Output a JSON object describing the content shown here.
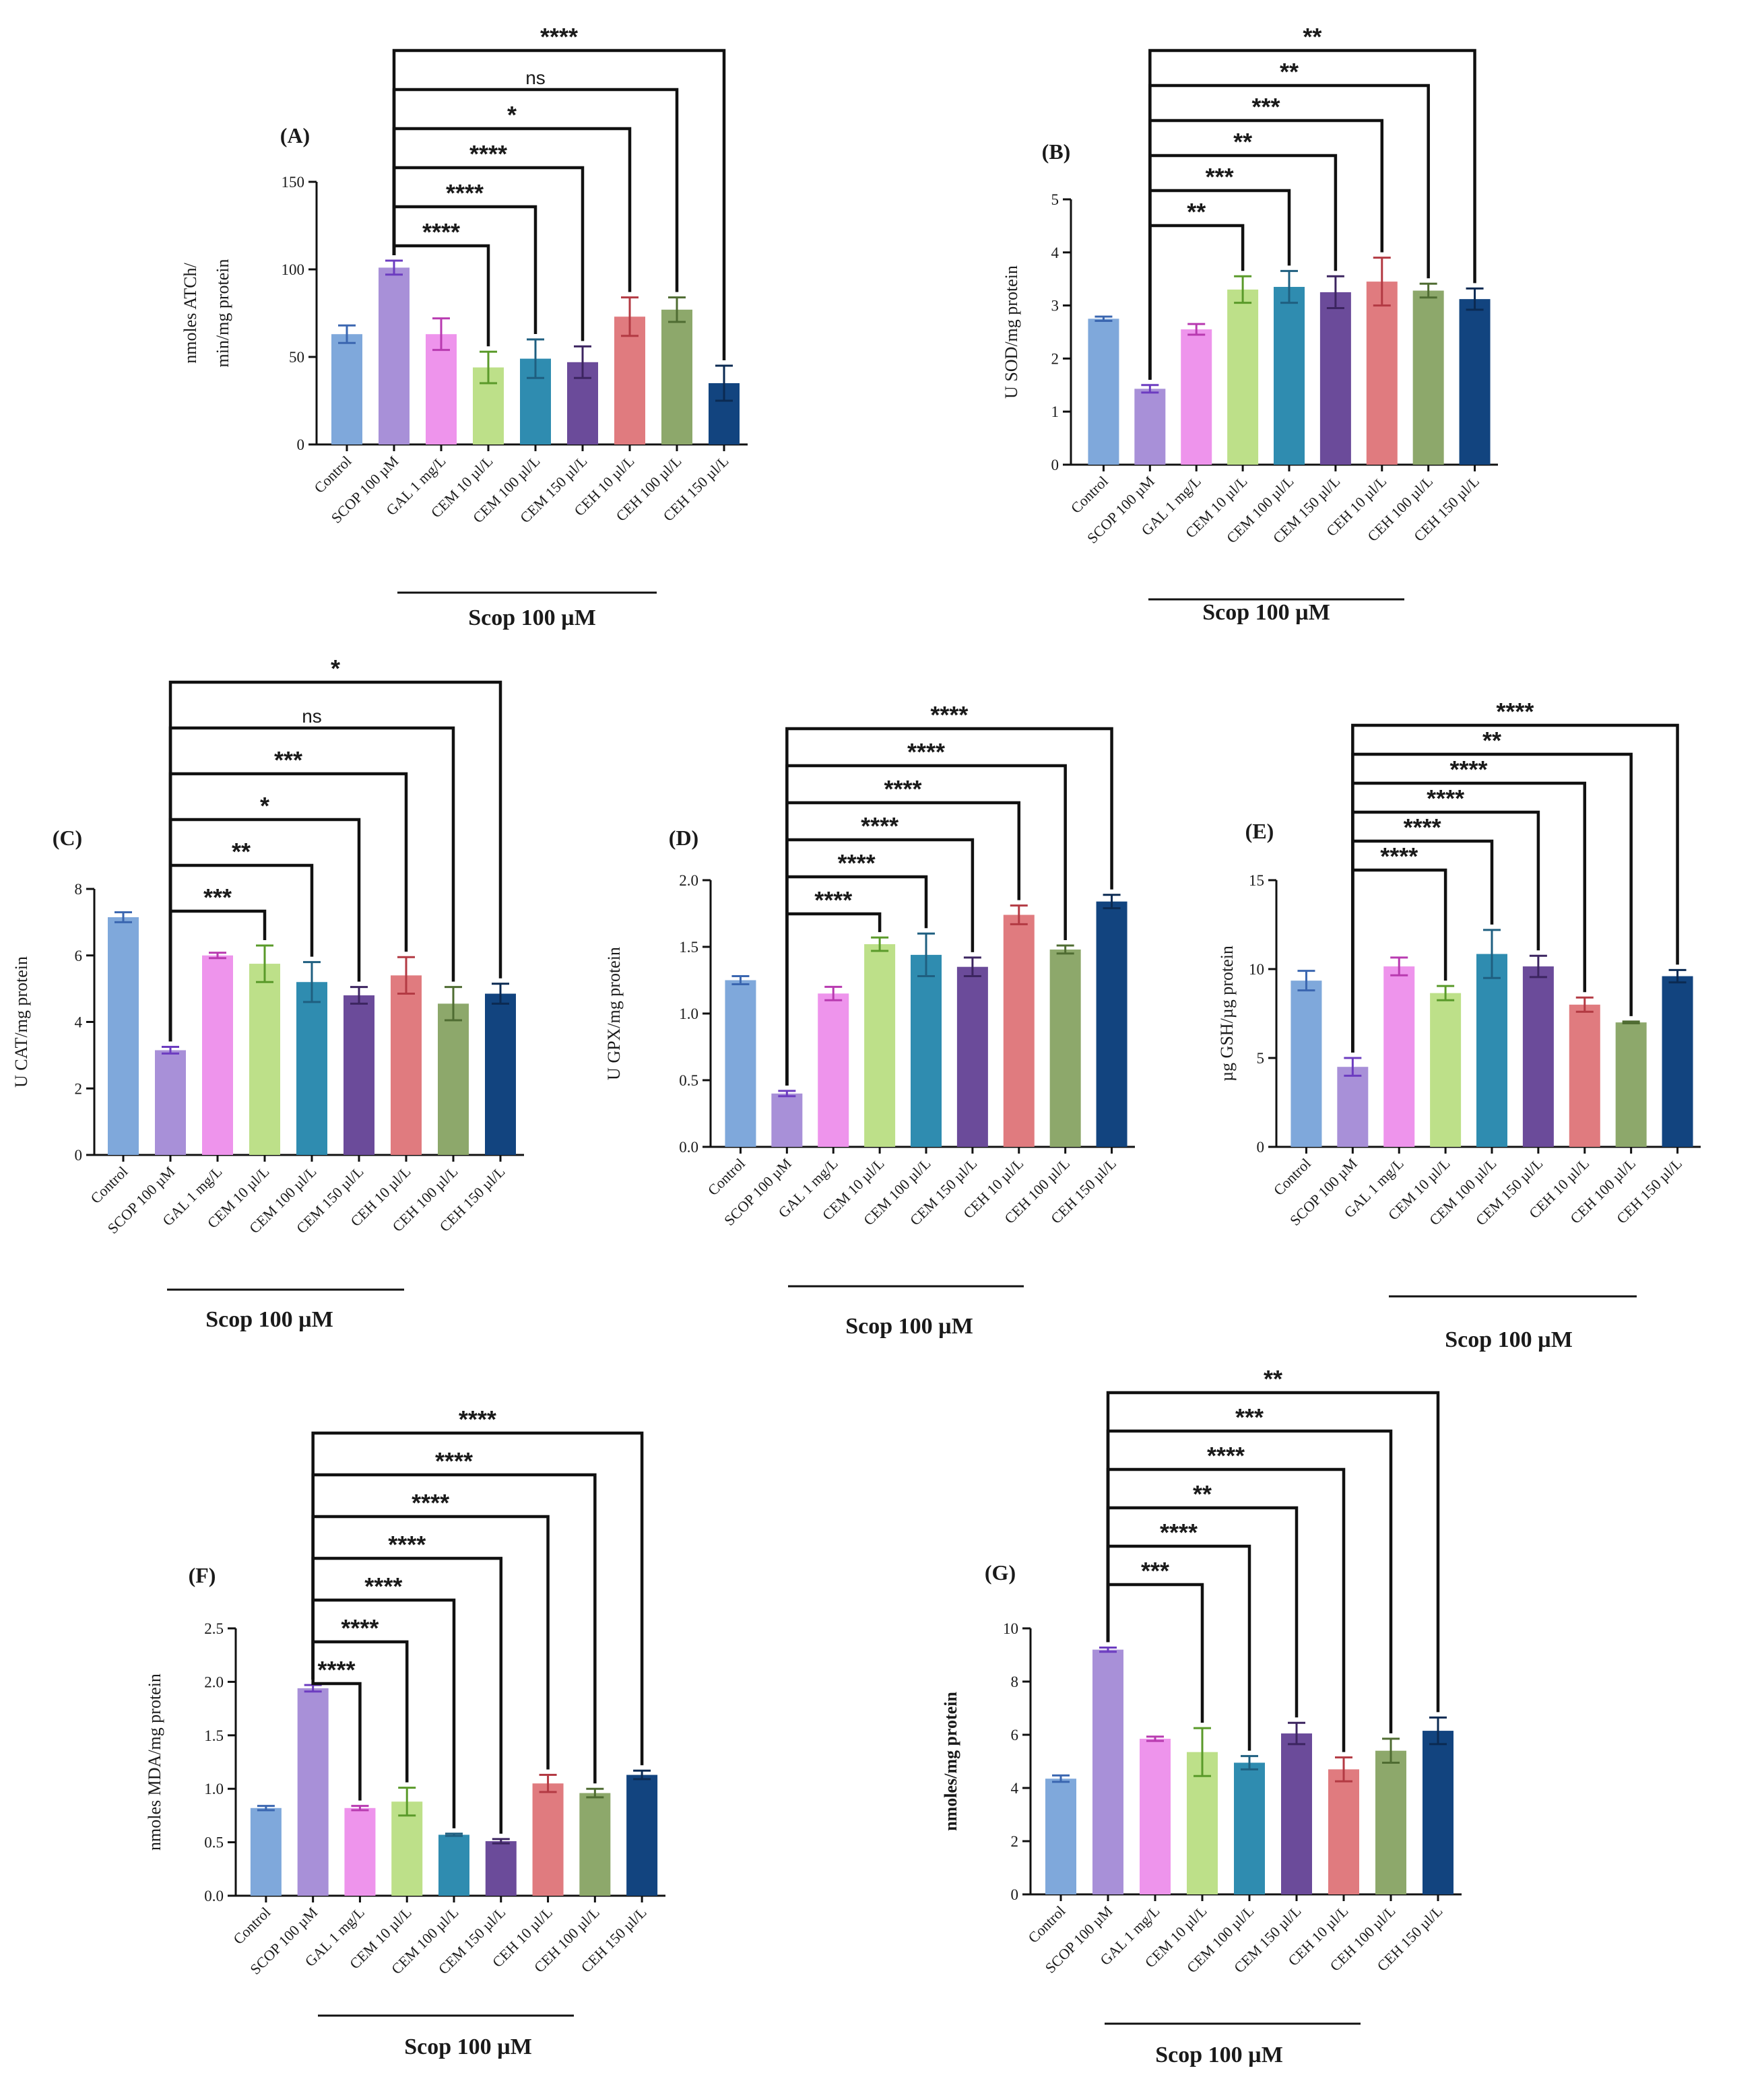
{
  "colors": {
    "fill": [
      "#7fa8db",
      "#a890d8",
      "#ee94ec",
      "#bde089",
      "#2f8cb0",
      "#6b4b9a",
      "#e07b7f",
      "#8da86b",
      "#12447f"
    ],
    "err": [
      "#3a66b0",
      "#6c3cc0",
      "#b83ab0",
      "#5a9a2a",
      "#1f5f80",
      "#3c2560",
      "#b33a43",
      "#4f6c32",
      "#0b2a52"
    ]
  },
  "chart_data": [
    {
      "panel": "(A)",
      "type": "bar",
      "categories": [
        "Control",
        "SCOP 100 µM",
        "GAL 1 mg/L",
        "CEM 10 µl/L",
        "CEM 100 µl/L",
        "CEM 150 µl/L",
        "CEH 10 µl/L",
        "CEH 100 µl/L",
        "CEH 150 µl/L"
      ],
      "values": [
        63,
        101,
        63,
        44,
        49,
        47,
        73,
        77,
        35
      ],
      "errors": [
        5,
        4,
        9,
        9,
        11,
        9,
        11,
        7,
        10
      ],
      "ylabel": [
        "nmoles ATCh/",
        "min/mg protein"
      ],
      "ylim": [
        0,
        150
      ],
      "yticks": [
        0,
        50,
        100,
        150
      ],
      "group_label": "Scop 100 µM",
      "comparisons": [
        {
          "from": 1,
          "to": 3,
          "label": "****"
        },
        {
          "from": 1,
          "to": 4,
          "label": "****"
        },
        {
          "from": 1,
          "to": 5,
          "label": "****"
        },
        {
          "from": 1,
          "to": 6,
          "label": "*"
        },
        {
          "from": 1,
          "to": 7,
          "label": "ns"
        },
        {
          "from": 1,
          "to": 8,
          "label": "****"
        }
      ]
    },
    {
      "panel": "(B)",
      "type": "bar",
      "categories": [
        "Control",
        "SCOP 100 µM",
        "GAL 1 mg/L",
        "CEM 10 µl/L",
        "CEM 100 µl/L",
        "CEM 150 µl/L",
        "CEH 10 µl/L",
        "CEH 100 µl/L",
        "CEH 150 µl/L"
      ],
      "values": [
        2.75,
        1.43,
        2.55,
        3.3,
        3.35,
        3.25,
        3.45,
        3.28,
        3.12
      ],
      "errors": [
        0.04,
        0.07,
        0.1,
        0.25,
        0.3,
        0.3,
        0.45,
        0.13,
        0.2
      ],
      "ylabel": [
        "U SOD/mg protein"
      ],
      "ylim": [
        0,
        5
      ],
      "yticks": [
        0,
        1,
        2,
        3,
        4,
        5
      ],
      "group_label": "Scop 100 µM",
      "comparisons": [
        {
          "from": 1,
          "to": 3,
          "label": "**"
        },
        {
          "from": 1,
          "to": 4,
          "label": "***"
        },
        {
          "from": 1,
          "to": 5,
          "label": "**"
        },
        {
          "from": 1,
          "to": 6,
          "label": "***"
        },
        {
          "from": 1,
          "to": 7,
          "label": "**"
        },
        {
          "from": 1,
          "to": 8,
          "label": "**"
        }
      ]
    },
    {
      "panel": "(C)",
      "type": "bar",
      "categories": [
        "Control",
        "SCOP 100 µM",
        "GAL 1 mg/L",
        "CEM 10 µl/L",
        "CEM 100 µl/L",
        "CEM 150 µl/L",
        "CEH 10 µl/L",
        "CEH 100 µl/L",
        "CEH 150 µl/L"
      ],
      "values": [
        7.15,
        3.15,
        6.0,
        5.75,
        5.2,
        4.8,
        5.4,
        4.55,
        4.85
      ],
      "errors": [
        0.15,
        0.1,
        0.08,
        0.55,
        0.6,
        0.25,
        0.55,
        0.5,
        0.3
      ],
      "ylabel": [
        "U CAT/mg protein"
      ],
      "ylim": [
        0,
        8
      ],
      "yticks": [
        0,
        2,
        4,
        6,
        8
      ],
      "group_label": "Scop 100 µM",
      "comparisons": [
        {
          "from": 1,
          "to": 3,
          "label": "***"
        },
        {
          "from": 1,
          "to": 4,
          "label": "**"
        },
        {
          "from": 1,
          "to": 5,
          "label": "*"
        },
        {
          "from": 1,
          "to": 6,
          "label": "***"
        },
        {
          "from": 1,
          "to": 7,
          "label": "ns"
        },
        {
          "from": 1,
          "to": 8,
          "label": "*"
        }
      ]
    },
    {
      "panel": "(D)",
      "type": "bar",
      "categories": [
        "Control",
        "SCOP 100 µM",
        "GAL 1 mg/L",
        "CEM 10 µl/L",
        "CEM 100 µl/L",
        "CEM 150 µl/L",
        "CEH 10 µl/L",
        "CEH 100 µl/L",
        "CEH 150 µl/L"
      ],
      "values": [
        1.25,
        0.4,
        1.15,
        1.52,
        1.44,
        1.35,
        1.74,
        1.48,
        1.84
      ],
      "errors": [
        0.03,
        0.02,
        0.05,
        0.05,
        0.16,
        0.07,
        0.07,
        0.03,
        0.05
      ],
      "ylabel": [
        "U GPX/mg protein"
      ],
      "ylim": [
        0,
        2
      ],
      "yticks": [
        "0.0",
        "0.5",
        "1.0",
        "1.5",
        "2.0"
      ],
      "group_label": "Scop 100 µM",
      "comparisons": [
        {
          "from": 1,
          "to": 3,
          "label": "****"
        },
        {
          "from": 1,
          "to": 4,
          "label": "****"
        },
        {
          "from": 1,
          "to": 5,
          "label": "****"
        },
        {
          "from": 1,
          "to": 6,
          "label": "****"
        },
        {
          "from": 1,
          "to": 7,
          "label": "****"
        },
        {
          "from": 1,
          "to": 8,
          "label": "****"
        }
      ]
    },
    {
      "panel": "(E)",
      "type": "bar",
      "categories": [
        "Control",
        "SCOP 100 µM",
        "GAL 1 mg/L",
        "CEM 10 µl/L",
        "CEM 100 µl/L",
        "CEM 150 µl/L",
        "CEH 10 µl/L",
        "CEH 100 µl/L",
        "CEH 150 µl/L"
      ],
      "values": [
        9.35,
        4.5,
        10.15,
        8.65,
        10.85,
        10.15,
        8.0,
        7.0,
        9.6
      ],
      "errors": [
        0.55,
        0.5,
        0.5,
        0.4,
        1.35,
        0.6,
        0.4,
        0.05,
        0.35
      ],
      "ylabel": [
        "µg GSH/µg protein"
      ],
      "ylim": [
        0,
        15
      ],
      "yticks": [
        0,
        5,
        10,
        15
      ],
      "group_label": "Scop 100 µM",
      "comparisons": [
        {
          "from": 1,
          "to": 3,
          "label": "****"
        },
        {
          "from": 1,
          "to": 4,
          "label": "****"
        },
        {
          "from": 1,
          "to": 5,
          "label": "****"
        },
        {
          "from": 1,
          "to": 6,
          "label": "****"
        },
        {
          "from": 1,
          "to": 7,
          "label": "**"
        },
        {
          "from": 1,
          "to": 8,
          "label": "****"
        }
      ]
    },
    {
      "panel": "(F)",
      "type": "bar",
      "categories": [
        "Control",
        "SCOP 100 µM",
        "GAL 1 mg/L",
        "CEM 10 µl/L",
        "CEM 100 µl/L",
        "CEM 150 µl/L",
        "CEH 10 µl/L",
        "CEH 100 µl/L",
        "CEH 150 µl/L"
      ],
      "values": [
        0.82,
        1.94,
        0.82,
        0.88,
        0.57,
        0.51,
        1.05,
        0.96,
        1.13
      ],
      "errors": [
        0.02,
        0.03,
        0.02,
        0.13,
        0.01,
        0.02,
        0.08,
        0.04,
        0.04
      ],
      "ylabel": [
        "nmoles MDA/mg protein"
      ],
      "ylim": [
        0,
        2.5
      ],
      "yticks": [
        "0.0",
        "0.5",
        "1.0",
        "1.5",
        "2.0",
        "2.5"
      ],
      "group_label": "Scop 100 µM",
      "comparisons": [
        {
          "from": 1,
          "to": 2,
          "label": "****"
        },
        {
          "from": 1,
          "to": 3,
          "label": "****"
        },
        {
          "from": 1,
          "to": 4,
          "label": "****"
        },
        {
          "from": 1,
          "to": 5,
          "label": "****"
        },
        {
          "from": 1,
          "to": 6,
          "label": "****"
        },
        {
          "from": 1,
          "to": 7,
          "label": "****"
        },
        {
          "from": 1,
          "to": 8,
          "label": "****"
        }
      ]
    },
    {
      "panel": "(G)",
      "type": "bar",
      "categories": [
        "Control",
        "SCOP 100 µM",
        "GAL 1 mg/L",
        "CEM 10 µl/L",
        "CEM 100 µl/L",
        "CEM 150 µl/L",
        "CEH 10 µl/L",
        "CEH 100 µl/L",
        "CEH 150 µl/L"
      ],
      "values": [
        4.35,
        9.2,
        5.85,
        5.35,
        4.95,
        6.05,
        4.7,
        5.4,
        6.15
      ],
      "errors": [
        0.12,
        0.08,
        0.08,
        0.9,
        0.25,
        0.4,
        0.45,
        0.45,
        0.5
      ],
      "ylabel": [
        "nmoles/mg protein"
      ],
      "ylim": [
        0,
        10
      ],
      "yticks": [
        0,
        2,
        4,
        6,
        8,
        10
      ],
      "group_label": "Scop 100 µM",
      "comparisons": [
        {
          "from": 1,
          "to": 3,
          "label": "***"
        },
        {
          "from": 1,
          "to": 4,
          "label": "****"
        },
        {
          "from": 1,
          "to": 5,
          "label": "**"
        },
        {
          "from": 1,
          "to": 6,
          "label": "****"
        },
        {
          "from": 1,
          "to": 7,
          "label": "***"
        },
        {
          "from": 1,
          "to": 8,
          "label": "**"
        }
      ]
    }
  ]
}
